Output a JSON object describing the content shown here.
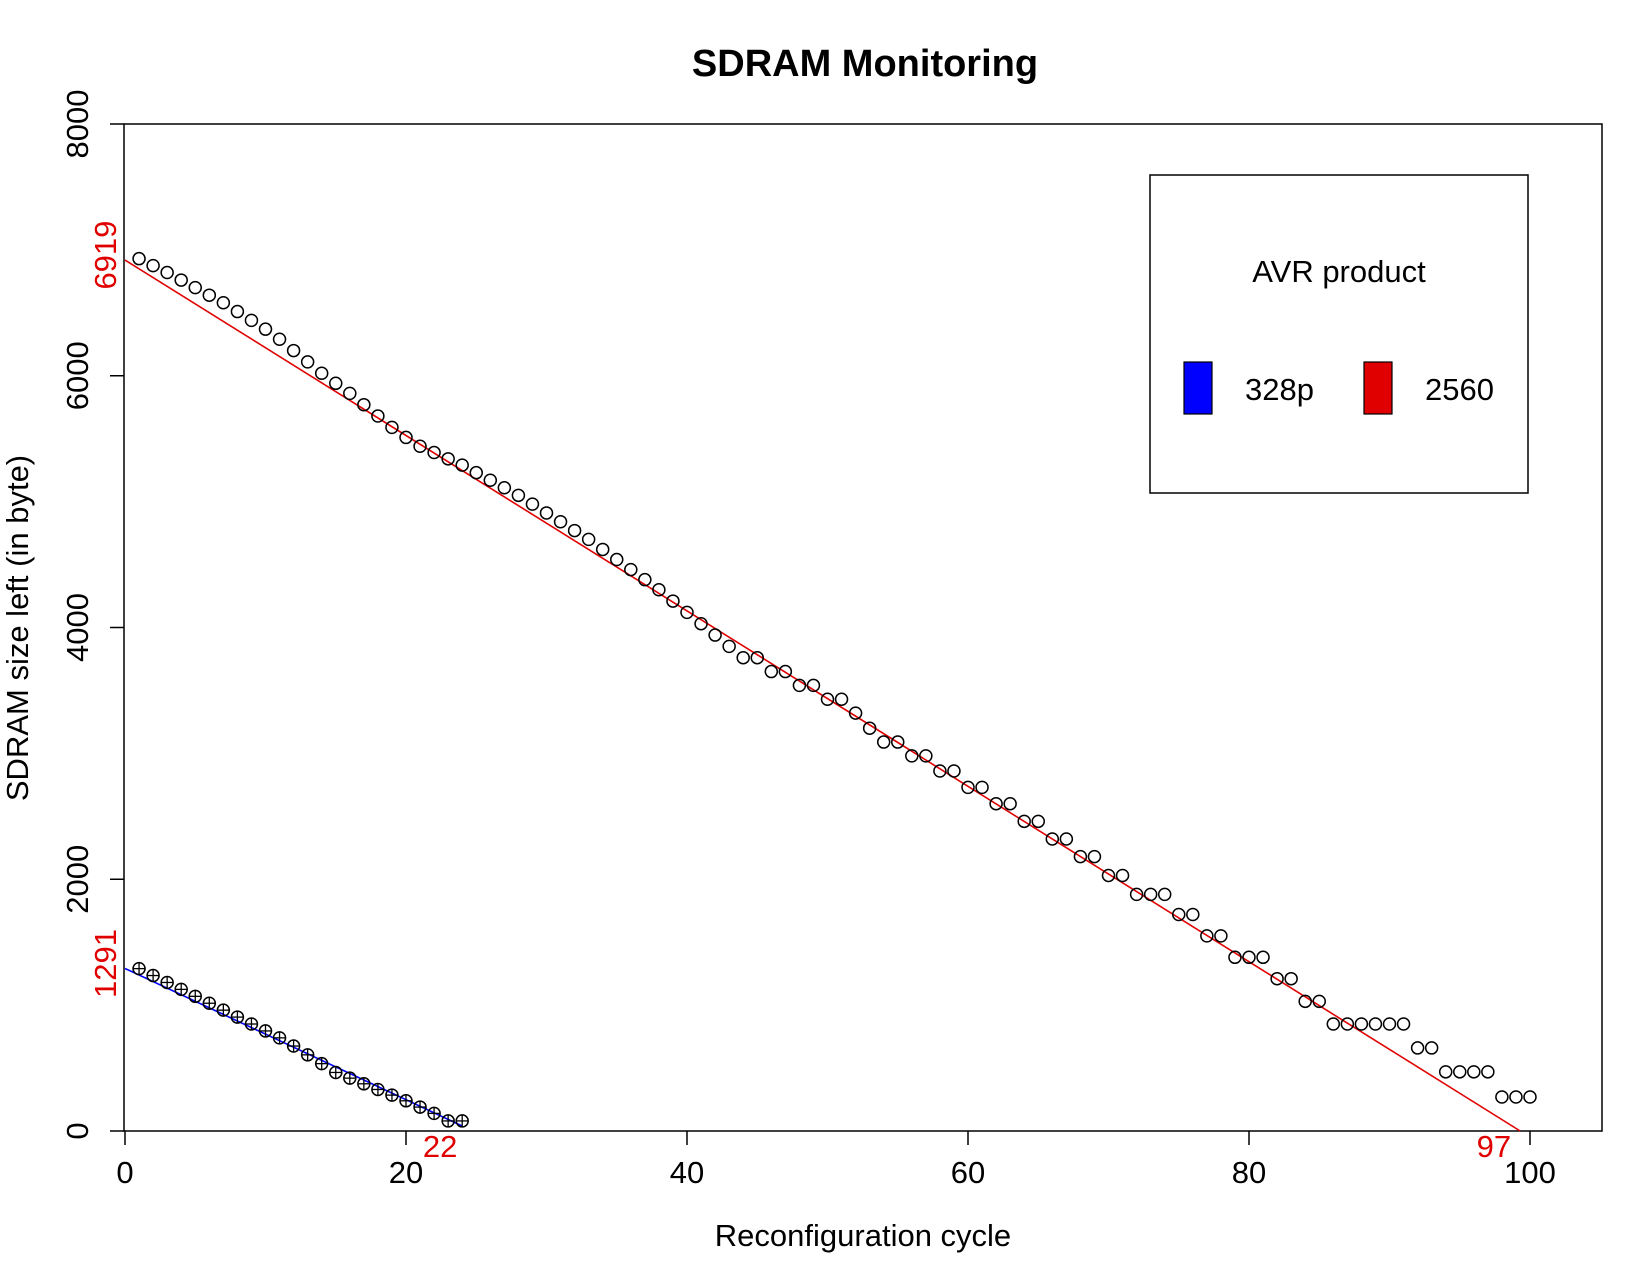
{
  "chart_data": {
    "type": "scatter",
    "title": "SDRAM Monitoring",
    "xlabel": "Reconfiguration cycle",
    "ylabel": "SDRAM size left (in byte)",
    "xlim": [
      0,
      105
    ],
    "ylim": [
      0,
      8000
    ],
    "x_ticks": [
      0,
      20,
      40,
      60,
      80,
      100
    ],
    "y_ticks": [
      0,
      2000,
      4000,
      6000,
      8000
    ],
    "grid": false,
    "legend": {
      "title": "AVR product",
      "position": "top-right",
      "entries": [
        {
          "label": "328p",
          "color": "#0000ff"
        },
        {
          "label": "2560",
          "color": "#e00000"
        }
      ]
    },
    "annotations": {
      "y_intercepts": [
        {
          "text": "6919",
          "value": 6919,
          "color": "#e00000"
        },
        {
          "text": "1291",
          "value": 1291,
          "color": "#e00000"
        }
      ],
      "x_intercepts": [
        {
          "text": "22",
          "value": 22,
          "color": "#e00000"
        },
        {
          "text": "97",
          "value": 97,
          "color": "#e00000"
        }
      ]
    },
    "series": [
      {
        "name": "328p",
        "marker": "circle-plus",
        "color": "#000000",
        "points": [
          [
            1,
            1290
          ],
          [
            2,
            1235
          ],
          [
            3,
            1180
          ],
          [
            4,
            1125
          ],
          [
            5,
            1070
          ],
          [
            6,
            1015
          ],
          [
            7,
            960
          ],
          [
            8,
            905
          ],
          [
            9,
            850
          ],
          [
            10,
            795
          ],
          [
            11,
            740
          ],
          [
            12,
            675
          ],
          [
            13,
            605
          ],
          [
            14,
            535
          ],
          [
            15,
            465
          ],
          [
            16,
            420
          ],
          [
            17,
            375
          ],
          [
            18,
            330
          ],
          [
            19,
            285
          ],
          [
            20,
            240
          ],
          [
            21,
            190
          ],
          [
            22,
            140
          ],
          [
            23,
            80
          ],
          [
            24,
            80
          ]
        ],
        "fit": {
          "x": [
            0,
            24
          ],
          "y": [
            1291,
            40
          ],
          "color": "#0000ff"
        }
      },
      {
        "name": "2560",
        "marker": "circle",
        "color": "#000000",
        "points": [
          [
            1,
            6930
          ],
          [
            2,
            6875
          ],
          [
            3,
            6820
          ],
          [
            4,
            6760
          ],
          [
            5,
            6700
          ],
          [
            6,
            6640
          ],
          [
            7,
            6580
          ],
          [
            8,
            6510
          ],
          [
            9,
            6440
          ],
          [
            10,
            6370
          ],
          [
            11,
            6290
          ],
          [
            12,
            6200
          ],
          [
            13,
            6110
          ],
          [
            14,
            6020
          ],
          [
            15,
            5940
          ],
          [
            16,
            5860
          ],
          [
            17,
            5770
          ],
          [
            18,
            5680
          ],
          [
            19,
            5590
          ],
          [
            20,
            5510
          ],
          [
            21,
            5440
          ],
          [
            22,
            5390
          ],
          [
            23,
            5340
          ],
          [
            24,
            5290
          ],
          [
            25,
            5230
          ],
          [
            26,
            5170
          ],
          [
            27,
            5110
          ],
          [
            28,
            5050
          ],
          [
            29,
            4980
          ],
          [
            30,
            4910
          ],
          [
            31,
            4840
          ],
          [
            32,
            4770
          ],
          [
            33,
            4700
          ],
          [
            34,
            4620
          ],
          [
            35,
            4540
          ],
          [
            36,
            4460
          ],
          [
            37,
            4380
          ],
          [
            38,
            4300
          ],
          [
            39,
            4210
          ],
          [
            40,
            4120
          ],
          [
            41,
            4030
          ],
          [
            42,
            3940
          ],
          [
            43,
            3850
          ],
          [
            44,
            3760
          ],
          [
            45,
            3760
          ],
          [
            46,
            3650
          ],
          [
            47,
            3650
          ],
          [
            48,
            3540
          ],
          [
            49,
            3540
          ],
          [
            50,
            3430
          ],
          [
            51,
            3430
          ],
          [
            52,
            3320
          ],
          [
            53,
            3200
          ],
          [
            54,
            3090
          ],
          [
            55,
            3090
          ],
          [
            56,
            2980
          ],
          [
            57,
            2980
          ],
          [
            58,
            2860
          ],
          [
            59,
            2860
          ],
          [
            60,
            2730
          ],
          [
            61,
            2730
          ],
          [
            62,
            2600
          ],
          [
            63,
            2600
          ],
          [
            64,
            2460
          ],
          [
            65,
            2460
          ],
          [
            66,
            2320
          ],
          [
            67,
            2320
          ],
          [
            68,
            2180
          ],
          [
            69,
            2180
          ],
          [
            70,
            2030
          ],
          [
            71,
            2030
          ],
          [
            72,
            1880
          ],
          [
            73,
            1880
          ],
          [
            74,
            1880
          ],
          [
            75,
            1720
          ],
          [
            76,
            1720
          ],
          [
            77,
            1550
          ],
          [
            78,
            1550
          ],
          [
            79,
            1380
          ],
          [
            80,
            1380
          ],
          [
            81,
            1380
          ],
          [
            82,
            1210
          ],
          [
            83,
            1210
          ],
          [
            84,
            1030
          ],
          [
            85,
            1030
          ],
          [
            86,
            850
          ],
          [
            87,
            850
          ],
          [
            88,
            850
          ],
          [
            89,
            850
          ],
          [
            90,
            850
          ],
          [
            91,
            850
          ],
          [
            92,
            660
          ],
          [
            93,
            660
          ],
          [
            94,
            470
          ],
          [
            95,
            470
          ],
          [
            96,
            470
          ],
          [
            97,
            470
          ],
          [
            98,
            270
          ],
          [
            99,
            270
          ],
          [
            100,
            270
          ]
        ],
        "fit": {
          "x": [
            0,
            99.3
          ],
          "y": [
            6919,
            0
          ],
          "color": "#e00000"
        }
      }
    ]
  }
}
